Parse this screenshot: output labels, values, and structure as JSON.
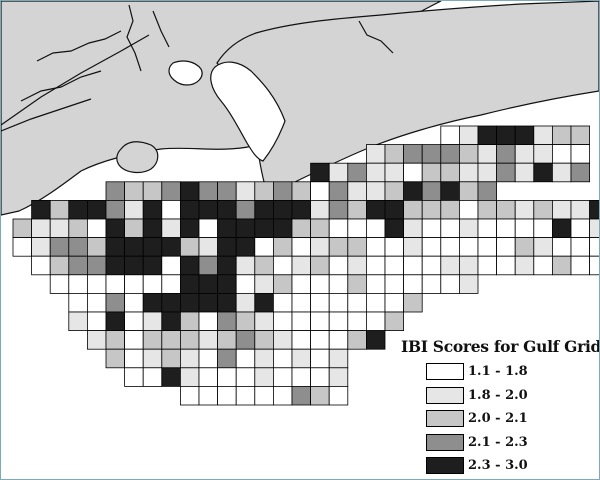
{
  "legend": {
    "title": "IBI Scores for Gulf Grids",
    "classes": [
      {
        "label": "1.1 - 1.8",
        "color": "#ffffff"
      },
      {
        "label": "1.8 - 2.0",
        "color": "#e6e6e6"
      },
      {
        "label": "2.0 - 2.1",
        "color": "#c6c6c6"
      },
      {
        "label": "2.1 - 2.3",
        "color": "#8e8e8e"
      },
      {
        "label": "2.3 - 3.0",
        "color": "#1e1e1e"
      }
    ]
  },
  "colors": {
    "land": "#d4d4d4",
    "coastline": "#111111",
    "water": "#ffffff",
    "frame": "#7fa8b8"
  },
  "grid_rows": [
    {
      "start_col": 23,
      "values": "01444122"
    },
    {
      "start_col": 19,
      "values": "123332131100"
    },
    {
      "start_col": 16,
      "values": "413110221131413"
    },
    {
      "start_col": 5,
      "values": "322343312320311243423"
    },
    {
      "start_col": 1,
      "values": "4244314044434441324422202212114"
    },
    {
      "start_col": 0,
      "values": "21120424140444422000410010000401"
    },
    {
      "start_col": 0,
      "values": "01332444421440201220010000021000"
    },
    {
      "start_col": 1,
      "values": "0233444043412012010000110010200"
    },
    {
      "start_col": 2,
      "values": "00000004440120002000001"
    },
    {
      "start_col": 3,
      "values": "0030444441400000002"
    },
    {
      "start_col": 3,
      "values": "104014203210000002"
    },
    {
      "start_col": 4,
      "values": "1202221232100024"
    },
    {
      "start_col": 5,
      "values": "2012103010101"
    },
    {
      "start_col": 6,
      "values": "004100010001"
    },
    {
      "start_col": 9,
      "values": "000000320"
    }
  ]
}
